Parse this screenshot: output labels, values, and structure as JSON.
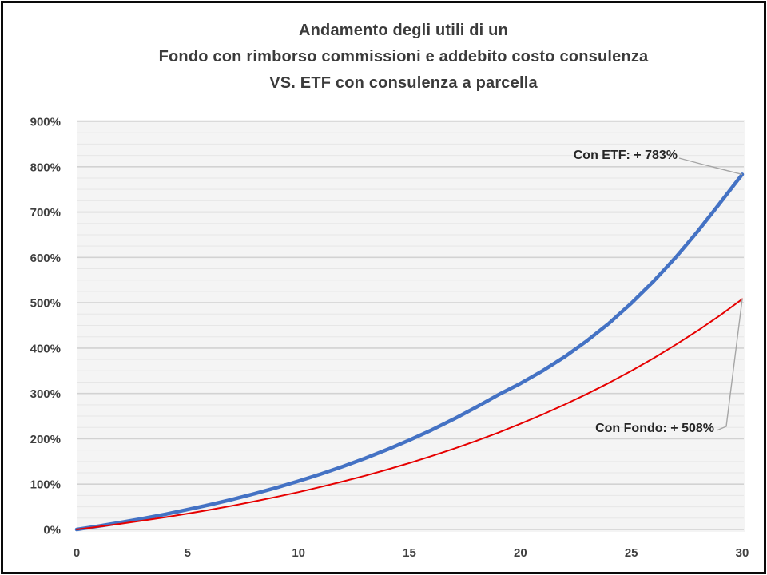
{
  "chart_data": {
    "type": "line",
    "title_lines": [
      "Andamento degli utili di un",
      "Fondo con rimborso commissioni e addebito costo consulenza",
      "VS. ETF con consulenza a parcella"
    ],
    "xlabel": "",
    "ylabel": "",
    "xlim": [
      0,
      30
    ],
    "ylim": [
      0,
      900
    ],
    "grid": "horizontal",
    "legend_position": "none",
    "y_minor_step": 25,
    "x_ticks": {
      "values": [
        0,
        5,
        10,
        15,
        20,
        25,
        30
      ],
      "labels": [
        "0",
        "5",
        "10",
        "15",
        "20",
        "25",
        "30"
      ]
    },
    "y_ticks": {
      "values": [
        0,
        100,
        200,
        300,
        400,
        500,
        600,
        700,
        800,
        900
      ],
      "labels": [
        "0%",
        "100%",
        "200%",
        "300%",
        "400%",
        "500%",
        "600%",
        "700%",
        "800%",
        "900%"
      ]
    },
    "x": [
      0,
      1,
      2,
      3,
      4,
      5,
      6,
      7,
      8,
      9,
      10,
      11,
      12,
      13,
      14,
      15,
      16,
      17,
      18,
      19,
      20,
      21,
      22,
      23,
      24,
      25,
      26,
      27,
      28,
      29,
      30
    ],
    "series": [
      {
        "name": "Con ETF",
        "color": "#4472C4",
        "stroke_width": 4.5,
        "final_value_pct": 783,
        "values": [
          0,
          7.5,
          15.6,
          24.3,
          33.7,
          43.8,
          54.6,
          66.2,
          78.8,
          92.2,
          106.7,
          122.3,
          139,
          157,
          176.3,
          197,
          219.5,
          243.6,
          269.4,
          297,
          322,
          350,
          381,
          416,
          455,
          499,
          547,
          600,
          658,
          720,
          783
        ]
      },
      {
        "name": "Con Fondo",
        "color": "#E60000",
        "stroke_width": 2,
        "final_value_pct": 508,
        "values": [
          0,
          6.2,
          12.8,
          19.8,
          27.2,
          35.1,
          43.4,
          52.3,
          61.8,
          71.8,
          82.5,
          93.8,
          105.8,
          118.6,
          132.1,
          146.5,
          161.8,
          178,
          195.2,
          213.5,
          233,
          253.6,
          275.6,
          298.8,
          323.6,
          349.8,
          377.7,
          407.3,
          438.8,
          472.2,
          508
        ]
      }
    ],
    "annotations": [
      {
        "text": "Con ETF: + 783%",
        "target_series": "Con ETF"
      },
      {
        "text": "Con Fondo: + 508%",
        "target_series": "Con Fondo"
      }
    ],
    "colors": {
      "page_bg": "#FFFFFF",
      "plot_bg": "#F4F4F4",
      "grid_major": "#D2D2D2",
      "grid_minor": "#E6E6E6",
      "tick_text": "#404040",
      "title_text": "#3B3B3B",
      "annotation_text": "#262626",
      "leader_line": "#A6A6A6",
      "frame_border": "#0A0A0A"
    }
  }
}
